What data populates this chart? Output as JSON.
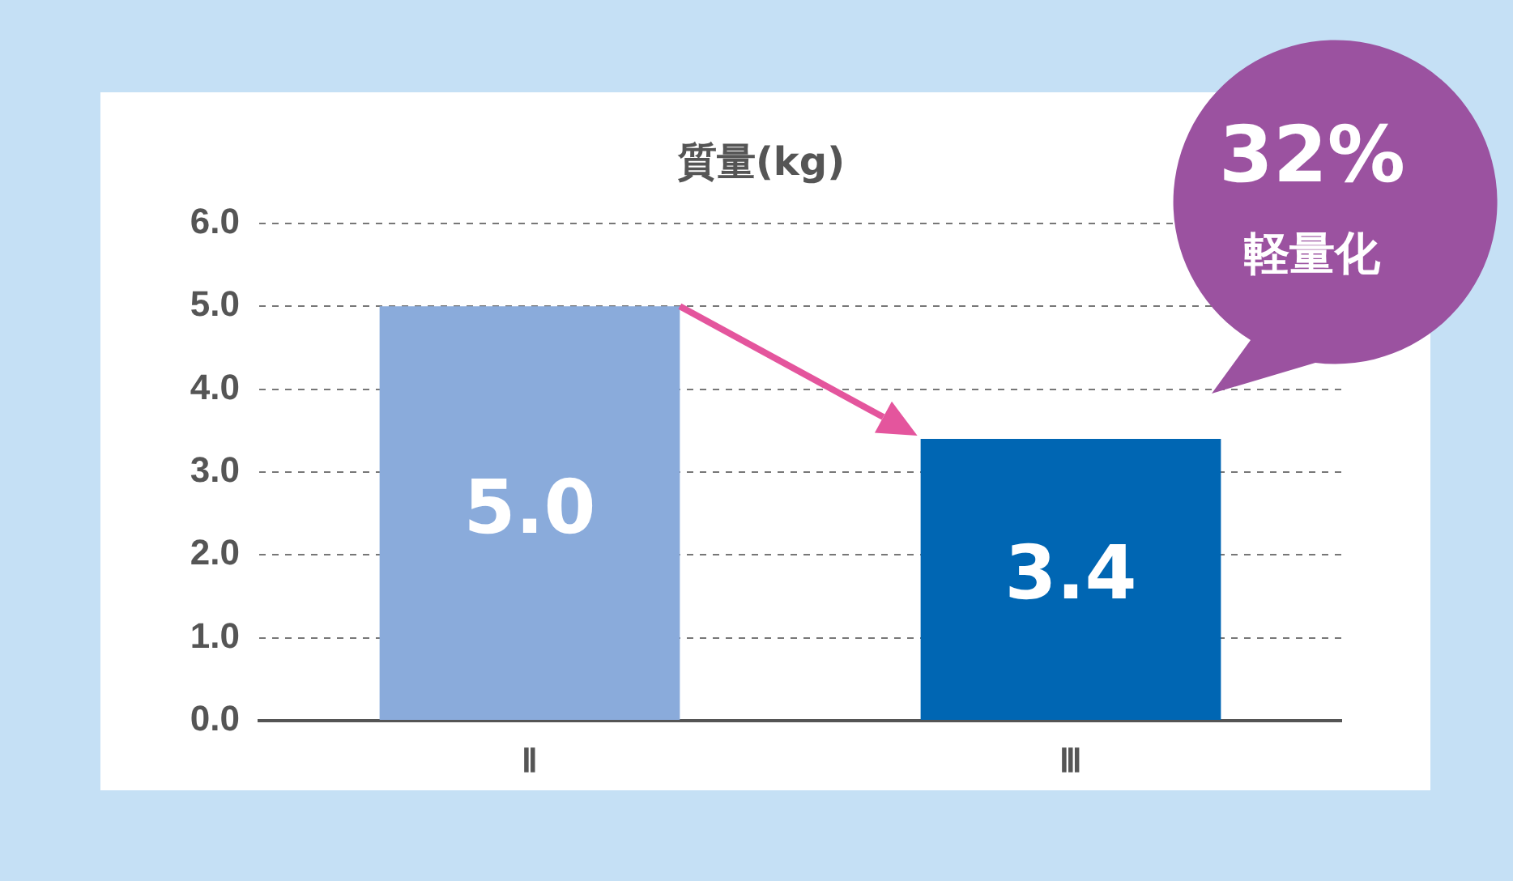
{
  "chart_data": {
    "type": "bar",
    "title": "質量(kg)",
    "categories": [
      "Ⅱ",
      "Ⅲ"
    ],
    "values": [
      5.0,
      3.4
    ],
    "colors": [
      "#8aabdb",
      "#0066b3"
    ],
    "ylim": [
      0,
      6
    ],
    "yticks": [
      {
        "value": 0,
        "label": "0.0"
      },
      {
        "value": 1,
        "label": "1.0"
      },
      {
        "value": 2,
        "label": "2.0"
      },
      {
        "value": 3,
        "label": "3.0"
      },
      {
        "value": 4,
        "label": "4.0"
      },
      {
        "value": 5,
        "label": "5.0"
      },
      {
        "value": 6,
        "label": "6.0"
      }
    ],
    "value_labels": [
      "5.0",
      "3.4"
    ],
    "grid": "y",
    "legend": false,
    "annotations": [
      "32%",
      "軽量化"
    ]
  }
}
